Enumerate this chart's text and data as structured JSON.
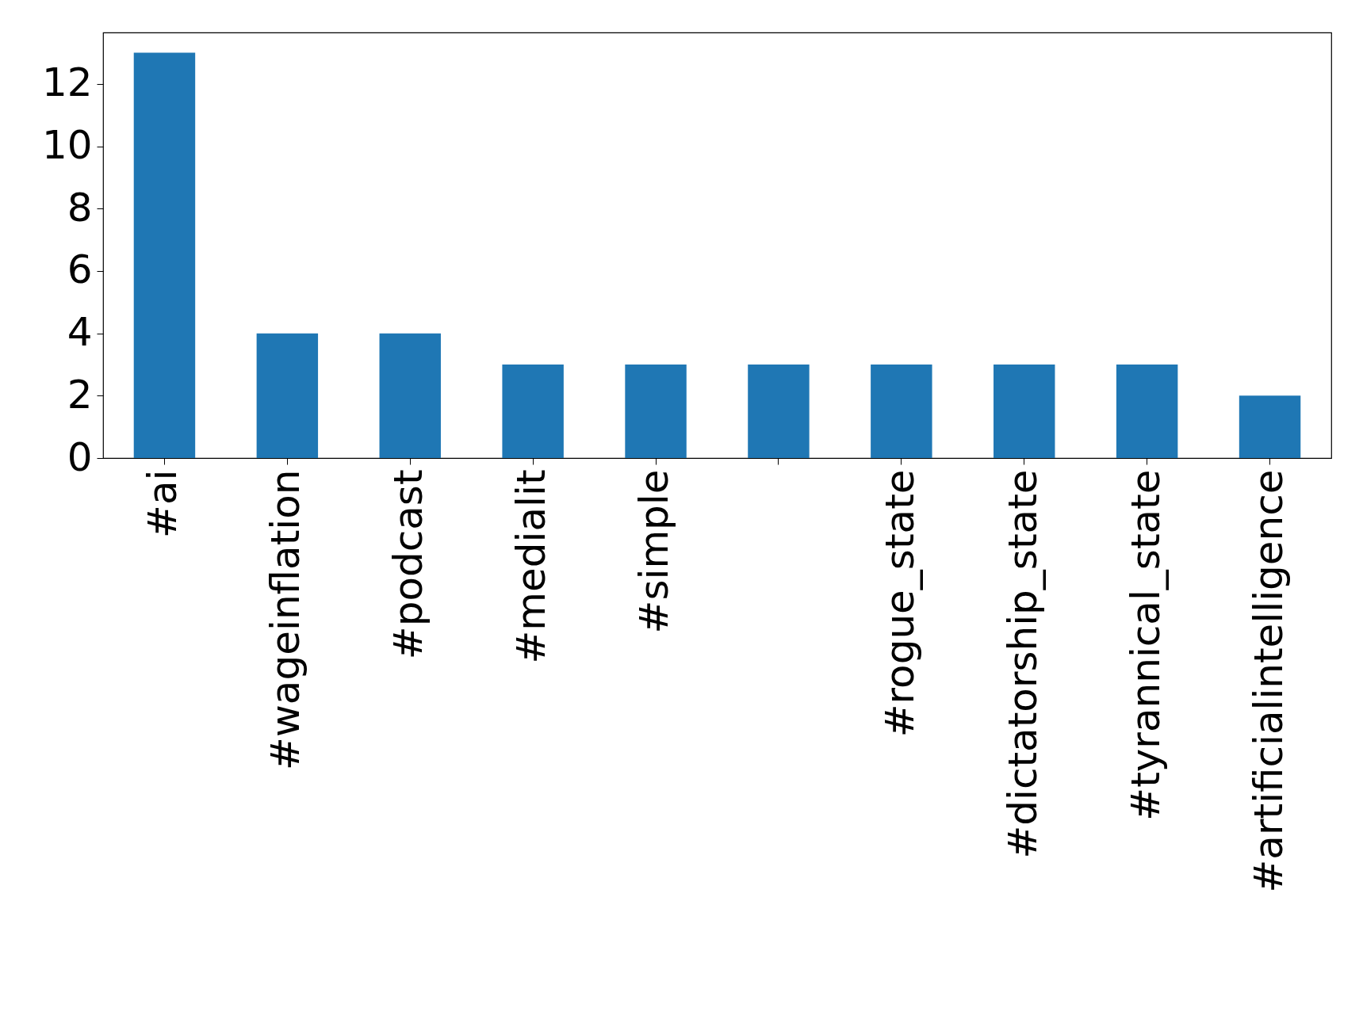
{
  "chart_data": {
    "type": "bar",
    "categories": [
      "#ai",
      "#wageinflation",
      "#podcast",
      "#medialit",
      "#simple",
      null,
      "#rogue_state",
      "#dictatorship_state",
      "#tyrannical_state",
      "#artificialintelligence"
    ],
    "values": [
      13,
      4,
      4,
      3,
      3,
      3,
      3,
      3,
      3,
      2
    ],
    "color": "#1f77b4",
    "ylim": [
      0,
      13.65
    ],
    "yticks": [
      0,
      2,
      4,
      6,
      8,
      10,
      12
    ],
    "grid": false
  }
}
